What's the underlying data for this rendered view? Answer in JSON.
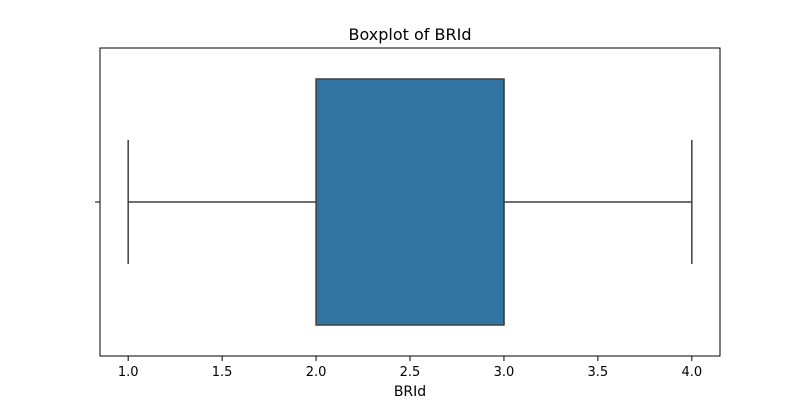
{
  "chart_data": {
    "type": "boxplot",
    "title": "Boxplot of BRId",
    "xlabel": "BRId",
    "ylabel": "",
    "orientation": "horizontal",
    "xlim": [
      0.85,
      4.15
    ],
    "x_ticks": [
      1.0,
      1.5,
      2.0,
      2.5,
      3.0,
      3.5,
      4.0
    ],
    "x_tick_labels": [
      "1.0",
      "1.5",
      "2.0",
      "2.5",
      "3.0",
      "3.5",
      "4.0"
    ],
    "series": [
      {
        "whisker_low": 1.0,
        "q1": 2.0,
        "median": 3.0,
        "q3": 3.0,
        "whisker_high": 4.0
      }
    ],
    "grid": false,
    "legend": "none",
    "colors": {
      "box_fill": "#3274a1",
      "line": "#3f3f3f",
      "frame": "#000000"
    }
  }
}
